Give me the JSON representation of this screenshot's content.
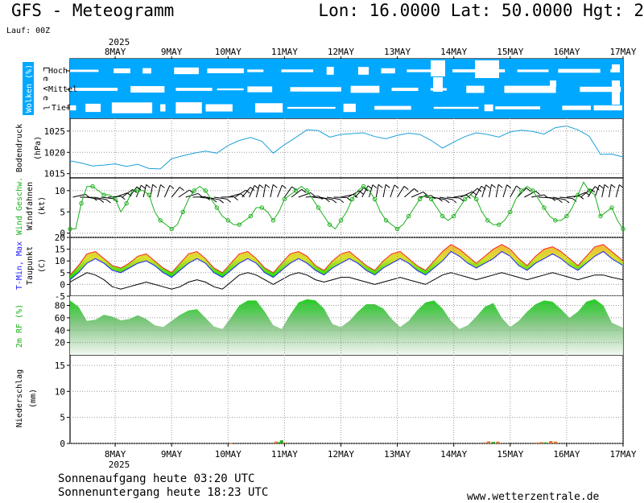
{
  "header": {
    "title": "GFS - Meteogramm",
    "coords": "Lon: 16.0000 Lat: 50.0000 Hgt: 2",
    "run": "Lauf: 00Z"
  },
  "footer": {
    "sunrise": "Sonnenaufgang heute 03:20 UTC",
    "sunset": "Sonnenuntergang heute 18:23 UTC",
    "url": "www.wetterzentrale.de"
  },
  "colors": {
    "cloud_sky": "#00a8ff",
    "pressure_line": "#1ca0d8",
    "wind_line": "#1ab01a",
    "wind_barb": "#000000",
    "tmax": "#ff2020",
    "tmin": "#2020ff",
    "dewpoint": "#000000",
    "temp_fill_low": "#00dd00",
    "temp_fill_high": "#f0c040",
    "rh_fill": "#33cc33",
    "precip_orange": "#e07020",
    "precip_green": "#22aa22"
  },
  "chart_data": {
    "type": "meteogram",
    "x_axis": {
      "year": "2025",
      "ticks": [
        "8MAY",
        "9MAY",
        "10MAY",
        "11MAY",
        "12MAY",
        "13MAY",
        "14MAY",
        "15MAY",
        "16MAY",
        "17MAY"
      ],
      "start_day": 7.2,
      "end_day": 17
    },
    "panels": [
      {
        "id": "clouds",
        "ylabel": "Wolken (%)",
        "levels_label": "L e v e l",
        "levels": [
          "Hoch",
          "Mittel",
          "Tief"
        ]
      },
      {
        "id": "pressure",
        "ylabel_line1": "Bodendruck",
        "ylabel_line2": "(hPa)",
        "yticks": [
          "1015",
          "1020",
          "1025"
        ],
        "ylim": [
          1014,
          1028
        ],
        "x": [
          7.2,
          7.4,
          7.6,
          7.8,
          8.0,
          8.2,
          8.4,
          8.6,
          8.8,
          9.0,
          9.2,
          9.4,
          9.6,
          9.8,
          10.0,
          10.2,
          10.4,
          10.6,
          10.8,
          11.0,
          11.2,
          11.4,
          11.6,
          11.8,
          12.0,
          12.2,
          12.4,
          12.6,
          12.8,
          13.0,
          13.2,
          13.4,
          13.6,
          13.8,
          14.0,
          14.2,
          14.4,
          14.6,
          14.8,
          15.0,
          15.2,
          15.4,
          15.6,
          15.8,
          16.0,
          16.2,
          16.4,
          16.6,
          16.8,
          17.0
        ],
        "values": [
          1018.0,
          1017.5,
          1016.8,
          1017.0,
          1017.3,
          1016.7,
          1017.2,
          1016.2,
          1016.1,
          1018.5,
          1019.2,
          1019.8,
          1020.3,
          1019.8,
          1021.6,
          1022.8,
          1023.5,
          1022.6,
          1019.8,
          1021.8,
          1023.5,
          1025.3,
          1025.1,
          1023.6,
          1024.2,
          1024.4,
          1024.6,
          1023.7,
          1023.2,
          1024.0,
          1024.5,
          1024.2,
          1022.8,
          1021.0,
          1022.4,
          1023.7,
          1024.6,
          1024.2,
          1023.6,
          1024.8,
          1025.2,
          1024.9,
          1024.3,
          1025.8,
          1026.2,
          1025.3,
          1023.8,
          1019.5,
          1019.6,
          1018.9
        ]
      },
      {
        "id": "wind",
        "ylabel_line1": "Wind Geschw.",
        "ylabel_line2": "Windfahnen",
        "ylabel_line3": "(kt)",
        "yticks": [
          "0",
          "5",
          "10"
        ],
        "ylim": [
          -1,
          13
        ],
        "x": [
          7.2,
          7.3,
          7.4,
          7.5,
          7.6,
          7.7,
          7.8,
          7.9,
          8.0,
          8.1,
          8.2,
          8.3,
          8.4,
          8.5,
          8.6,
          8.7,
          8.8,
          8.9,
          9.0,
          9.1,
          9.2,
          9.3,
          9.4,
          9.5,
          9.6,
          9.7,
          9.8,
          9.9,
          10.0,
          10.1,
          10.2,
          10.3,
          10.4,
          10.5,
          10.6,
          10.7,
          10.8,
          10.9,
          11.0,
          11.1,
          11.2,
          11.3,
          11.4,
          11.5,
          11.6,
          11.7,
          11.8,
          11.9,
          12.0,
          12.1,
          12.2,
          12.3,
          12.4,
          12.5,
          12.6,
          12.7,
          12.8,
          12.9,
          13.0,
          13.1,
          13.2,
          13.3,
          13.4,
          13.5,
          13.6,
          13.7,
          13.8,
          13.9,
          14.0,
          14.1,
          14.2,
          14.3,
          14.4,
          14.5,
          14.6,
          14.7,
          14.8,
          14.9,
          15.0,
          15.1,
          15.2,
          15.3,
          15.4,
          15.5,
          15.6,
          15.7,
          15.8,
          15.9,
          16.0,
          16.1,
          16.2,
          16.3,
          16.4,
          16.5,
          16.6,
          16.7,
          16.8,
          16.9,
          17.0
        ],
        "values": [
          1,
          1,
          7,
          11,
          11,
          10,
          9,
          9,
          8,
          5,
          7,
          10,
          10,
          10,
          9,
          5,
          3,
          2,
          1,
          2,
          5,
          8,
          10,
          11,
          10,
          8,
          6,
          4,
          3,
          2,
          2,
          3,
          4,
          6,
          6,
          5,
          3,
          5,
          8,
          9,
          10,
          11,
          10,
          8,
          6,
          4,
          2,
          1,
          3,
          5,
          8,
          10,
          11,
          10,
          8,
          5,
          3,
          2,
          1,
          2,
          4,
          6,
          8,
          9,
          8,
          6,
          4,
          3,
          4,
          6,
          8,
          9,
          8,
          5,
          3,
          2,
          2,
          3,
          5,
          8,
          10,
          11,
          10,
          8,
          6,
          4,
          3,
          3,
          4,
          6,
          9,
          12,
          10,
          9,
          4,
          5,
          6,
          3,
          1
        ]
      },
      {
        "id": "temperature",
        "ylabel_line1": "T-Min, Max",
        "ylabel_line2": "Taupunkt",
        "ylabel_line3": "(C)",
        "yticks": [
          "-5",
          "0",
          "5",
          "10",
          "15",
          "20"
        ],
        "ylim": [
          -5,
          20
        ],
        "x": [
          7.2,
          7.35,
          7.5,
          7.65,
          7.8,
          7.95,
          8.1,
          8.25,
          8.4,
          8.55,
          8.7,
          8.85,
          9.0,
          9.15,
          9.3,
          9.45,
          9.6,
          9.75,
          9.9,
          10.05,
          10.2,
          10.35,
          10.5,
          10.65,
          10.8,
          10.95,
          11.1,
          11.25,
          11.4,
          11.55,
          11.7,
          11.85,
          12.0,
          12.15,
          12.3,
          12.45,
          12.6,
          12.75,
          12.9,
          13.05,
          13.2,
          13.35,
          13.5,
          13.65,
          13.8,
          13.95,
          14.1,
          14.25,
          14.4,
          14.55,
          14.7,
          14.85,
          15.0,
          15.15,
          15.3,
          15.45,
          15.6,
          15.75,
          15.9,
          16.05,
          16.2,
          16.35,
          16.5,
          16.65,
          16.8,
          17.0
        ],
        "tmax": [
          4,
          8,
          13,
          14,
          11,
          8,
          7,
          9,
          12,
          13,
          10,
          7,
          5,
          9,
          13,
          14,
          11,
          7,
          5,
          9,
          13,
          14,
          11,
          7,
          5,
          9,
          13,
          14,
          12,
          8,
          6,
          10,
          13,
          14,
          11,
          8,
          6,
          10,
          13,
          14,
          11,
          8,
          6,
          10,
          14,
          17,
          15,
          12,
          9,
          12,
          15,
          17,
          15,
          11,
          8,
          12,
          15,
          16,
          14,
          11,
          8,
          12,
          16,
          17,
          14,
          10
        ],
        "tmin": [
          2,
          5,
          9,
          11,
          9,
          6,
          5,
          7,
          9,
          10,
          8,
          5,
          3,
          6,
          9,
          11,
          9,
          5,
          3,
          6,
          9,
          11,
          9,
          5,
          3,
          6,
          9,
          11,
          9,
          6,
          4,
          7,
          9,
          11,
          9,
          6,
          4,
          7,
          9,
          11,
          9,
          6,
          4,
          7,
          10,
          14,
          12,
          9,
          7,
          9,
          11,
          14,
          12,
          8,
          6,
          9,
          11,
          13,
          11,
          8,
          6,
          9,
          12,
          14,
          11,
          8
        ],
        "dewpoint": [
          1,
          3,
          5,
          4,
          2,
          -1,
          -2,
          -1,
          0,
          1,
          0,
          -1,
          -2,
          -1,
          1,
          2,
          1,
          -1,
          -2,
          1,
          4,
          5,
          4,
          2,
          0,
          2,
          4,
          5,
          4,
          2,
          1,
          2,
          3,
          3,
          2,
          1,
          0,
          1,
          2,
          3,
          2,
          1,
          0,
          2,
          4,
          5,
          4,
          3,
          2,
          3,
          4,
          5,
          4,
          3,
          2,
          3,
          4,
          5,
          4,
          3,
          2,
          3,
          4,
          4,
          3,
          2
        ]
      },
      {
        "id": "rh",
        "ylabel": "2m RF (%)",
        "yticks": [
          "20",
          "40",
          "60",
          "80"
        ],
        "ylim": [
          0,
          95
        ],
        "x": [
          7.2,
          7.35,
          7.5,
          7.65,
          7.8,
          7.95,
          8.1,
          8.25,
          8.4,
          8.55,
          8.7,
          8.85,
          9.0,
          9.15,
          9.3,
          9.45,
          9.6,
          9.75,
          9.9,
          10.05,
          10.2,
          10.35,
          10.5,
          10.65,
          10.8,
          10.95,
          11.1,
          11.25,
          11.4,
          11.55,
          11.7,
          11.85,
          12.0,
          12.15,
          12.3,
          12.45,
          12.6,
          12.75,
          12.9,
          13.05,
          13.2,
          13.35,
          13.5,
          13.65,
          13.8,
          13.95,
          14.1,
          14.25,
          14.4,
          14.55,
          14.7,
          14.85,
          15.0,
          15.15,
          15.3,
          15.45,
          15.6,
          15.75,
          15.9,
          16.05,
          16.2,
          16.35,
          16.5,
          16.65,
          16.8,
          17.0
        ],
        "values": [
          88,
          78,
          55,
          57,
          65,
          62,
          56,
          58,
          64,
          58,
          48,
          45,
          55,
          65,
          72,
          74,
          60,
          46,
          42,
          60,
          80,
          88,
          88,
          70,
          48,
          42,
          65,
          85,
          90,
          88,
          75,
          50,
          45,
          55,
          70,
          82,
          82,
          75,
          58,
          45,
          55,
          72,
          85,
          88,
          75,
          55,
          42,
          48,
          62,
          78,
          84,
          60,
          45,
          55,
          70,
          82,
          88,
          86,
          74,
          60,
          70,
          86,
          90,
          80,
          52,
          44
        ],
        "value_range_end": 68
      },
      {
        "id": "precip",
        "ylabel_line1": "Niederschlag",
        "ylabel_line2": "(mm)",
        "yticks": [
          "0",
          "5",
          "10",
          "15"
        ],
        "ylim": [
          0,
          17
        ],
        "bars": [
          {
            "x": 10.05,
            "value": 0.1,
            "kind": "orange"
          },
          {
            "x": 10.85,
            "value": 0.35,
            "kind": "orange"
          },
          {
            "x": 10.9,
            "value": 0.25,
            "kind": "green"
          },
          {
            "x": 10.95,
            "value": 0.6,
            "kind": "green"
          },
          {
            "x": 11.0,
            "value": 0.15,
            "kind": "orange"
          },
          {
            "x": 14.55,
            "value": 0.2,
            "kind": "orange"
          },
          {
            "x": 14.62,
            "value": 0.4,
            "kind": "orange"
          },
          {
            "x": 14.7,
            "value": 0.3,
            "kind": "green"
          },
          {
            "x": 14.78,
            "value": 0.35,
            "kind": "orange"
          },
          {
            "x": 15.45,
            "value": 0.15,
            "kind": "orange"
          },
          {
            "x": 15.55,
            "value": 0.25,
            "kind": "orange"
          },
          {
            "x": 15.62,
            "value": 0.2,
            "kind": "green"
          },
          {
            "x": 15.72,
            "value": 0.45,
            "kind": "orange"
          },
          {
            "x": 15.8,
            "value": 0.35,
            "kind": "orange"
          }
        ]
      }
    ]
  }
}
